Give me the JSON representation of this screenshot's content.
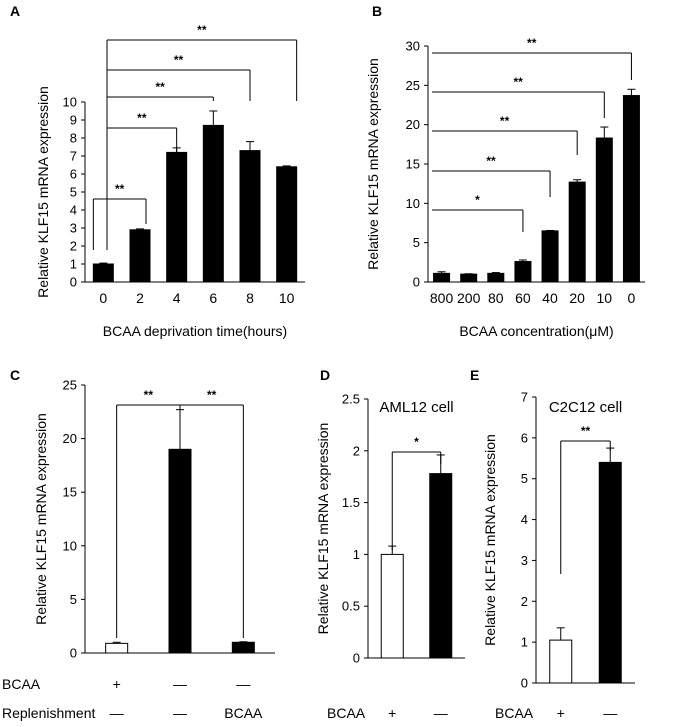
{
  "chart_data": [
    {
      "id": "A",
      "type": "bar",
      "panel_label": "A",
      "categories": [
        "0",
        "2",
        "4",
        "6",
        "8",
        "10"
      ],
      "values": [
        1.0,
        2.9,
        7.2,
        8.7,
        7.3,
        6.4
      ],
      "errors": [
        0.05,
        0.05,
        0.25,
        0.8,
        0.5,
        0.05
      ],
      "fills": [
        "#000000",
        "#000000",
        "#000000",
        "#000000",
        "#000000",
        "#000000"
      ],
      "ylim": [
        0,
        10
      ],
      "yticks": [
        0,
        1,
        2,
        3,
        4,
        5,
        6,
        7,
        8,
        9,
        10
      ],
      "ytick_labels": [
        "0",
        "1",
        "2",
        "3",
        "4",
        "5",
        "6",
        "7",
        "8",
        "9",
        "10"
      ],
      "ylabel": "Relative  KLF15  mRNA expression",
      "xlabel": "BCAA deprivation  time(hours)",
      "significance": [
        {
          "from": 0,
          "to": 1,
          "label": "**"
        },
        {
          "from": 0,
          "to": 2,
          "label": "**"
        },
        {
          "from": 0,
          "to": 3,
          "label": "**"
        },
        {
          "from": 0,
          "to": 4,
          "label": "**"
        },
        {
          "from": 0,
          "to": 5,
          "label": "**"
        },
        {
          "from": 0,
          "to": 5,
          "label": "**"
        }
      ]
    },
    {
      "id": "B",
      "type": "bar",
      "panel_label": "B",
      "categories": [
        "800",
        "200",
        "80",
        "60",
        "40",
        "20",
        "10",
        "0"
      ],
      "values": [
        1.1,
        1.0,
        1.1,
        2.6,
        6.5,
        12.7,
        18.3,
        23.7
      ],
      "errors": [
        0.2,
        0.05,
        0.1,
        0.2,
        0.05,
        0.3,
        1.4,
        0.8
      ],
      "fills": [
        "#000000",
        "#000000",
        "#000000",
        "#000000",
        "#000000",
        "#000000",
        "#000000",
        "#000000"
      ],
      "ylim": [
        0,
        30
      ],
      "yticks": [
        0,
        5,
        10,
        15,
        20,
        25,
        30
      ],
      "ytick_labels": [
        "0",
        "5",
        "10",
        "15",
        "20",
        "25",
        "30"
      ],
      "ylabel": "Relative  KLF15 mRNA expression",
      "xlabel": "BCAA concentration(μM)",
      "significance": [
        {
          "from": 0,
          "to": 3,
          "label": "*"
        },
        {
          "from": 0,
          "to": 4,
          "label": "**"
        },
        {
          "from": 0,
          "to": 5,
          "label": "**"
        },
        {
          "from": 0,
          "to": 6,
          "label": "**"
        },
        {
          "from": 0,
          "to": 7,
          "label": "**"
        }
      ]
    },
    {
      "id": "C",
      "type": "bar",
      "panel_label": "C",
      "categories": [
        "",
        "",
        ""
      ],
      "values": [
        0.9,
        19.0,
        1.0
      ],
      "errors": [
        0.1,
        3.7,
        0.05
      ],
      "fills": [
        "#ffffff",
        "#000000",
        "#000000"
      ],
      "ylim": [
        0,
        25
      ],
      "yticks": [
        0,
        5,
        10,
        15,
        20,
        25
      ],
      "ytick_labels": [
        "0",
        "5",
        "10",
        "15",
        "20",
        "25"
      ],
      "ylabel": "Relative  KLF15 mRNA expression",
      "row_labels": [
        {
          "name": "BCAA",
          "cells": [
            "+",
            "—",
            "—"
          ]
        },
        {
          "name": "Replenishment",
          "cells": [
            "—",
            "—",
            "BCAA"
          ]
        }
      ],
      "significance": [
        {
          "from": 0,
          "to": 1,
          "label": "**"
        },
        {
          "from": 1,
          "to": 2,
          "label": "**"
        }
      ]
    },
    {
      "id": "D",
      "type": "bar",
      "panel_label": "D",
      "title": "AML12 cell",
      "categories": [
        "+",
        "—"
      ],
      "values": [
        1.0,
        1.78
      ],
      "errors": [
        0.08,
        0.18
      ],
      "fills": [
        "#ffffff",
        "#000000"
      ],
      "ylim": [
        0,
        2.5
      ],
      "yticks": [
        0,
        0.5,
        1,
        1.5,
        2,
        2.5
      ],
      "ytick_labels": [
        "0",
        "0.5",
        "1",
        "1.5",
        "2",
        "2.5"
      ],
      "ylabel": "Relative  KLF15 mRNA expression",
      "row_label": "BCAA",
      "significance": [
        {
          "from": 0,
          "to": 1,
          "label": "*"
        }
      ]
    },
    {
      "id": "E",
      "type": "bar",
      "panel_label": "E",
      "title": "C2C12 cell",
      "categories": [
        "+",
        "—"
      ],
      "values": [
        1.05,
        5.4
      ],
      "errors": [
        0.3,
        0.35
      ],
      "fills": [
        "#ffffff",
        "#000000"
      ],
      "ylim": [
        0,
        7
      ],
      "yticks": [
        0,
        1,
        2,
        3,
        4,
        5,
        6,
        7
      ],
      "ytick_labels": [
        "0",
        "1",
        "2",
        "3",
        "4",
        "5",
        "6",
        "7"
      ],
      "ylabel": "Relative  KLF15 mRNA expression",
      "row_label": "BCAA",
      "significance": [
        {
          "from": 0,
          "to": 1,
          "label": "**"
        }
      ]
    }
  ]
}
